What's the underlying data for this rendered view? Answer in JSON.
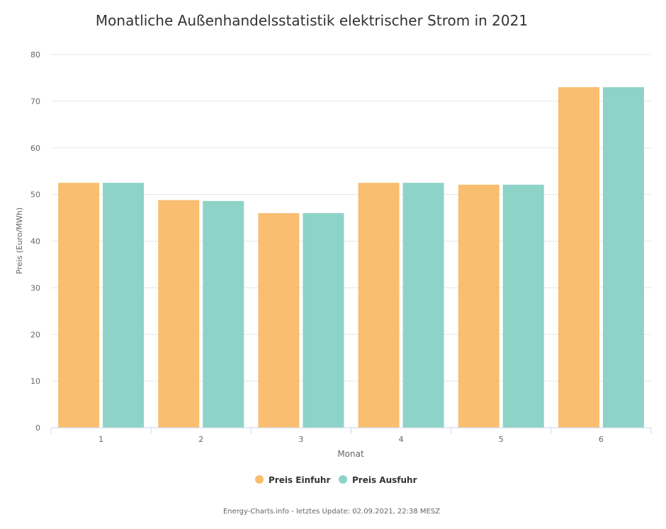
{
  "chart_data": {
    "type": "bar",
    "title": "Monatliche Außenhandelsstatistik elektrischer Strom in 2021",
    "xlabel": "Monat",
    "ylabel": "Preis (Euro/MWh)",
    "categories": [
      "1",
      "2",
      "3",
      "4",
      "5",
      "6"
    ],
    "ylim": [
      0,
      80
    ],
    "yticks": [
      0,
      10,
      20,
      30,
      40,
      50,
      60,
      70,
      80
    ],
    "grid": true,
    "legend_position": "bottom",
    "series": [
      {
        "name": "Preis Einfuhr",
        "color": "#f9be70",
        "values": [
          52.5,
          48.8,
          46.0,
          52.5,
          52.1,
          73.0
        ]
      },
      {
        "name": "Preis Ausfuhr",
        "color": "#8dd3c7",
        "values": [
          52.5,
          48.6,
          46.0,
          52.5,
          52.1,
          73.0
        ]
      }
    ]
  },
  "footer": {
    "credit": "Energy-Charts.info - letztes Update: 02.09.2021, 22:38 MESZ"
  }
}
